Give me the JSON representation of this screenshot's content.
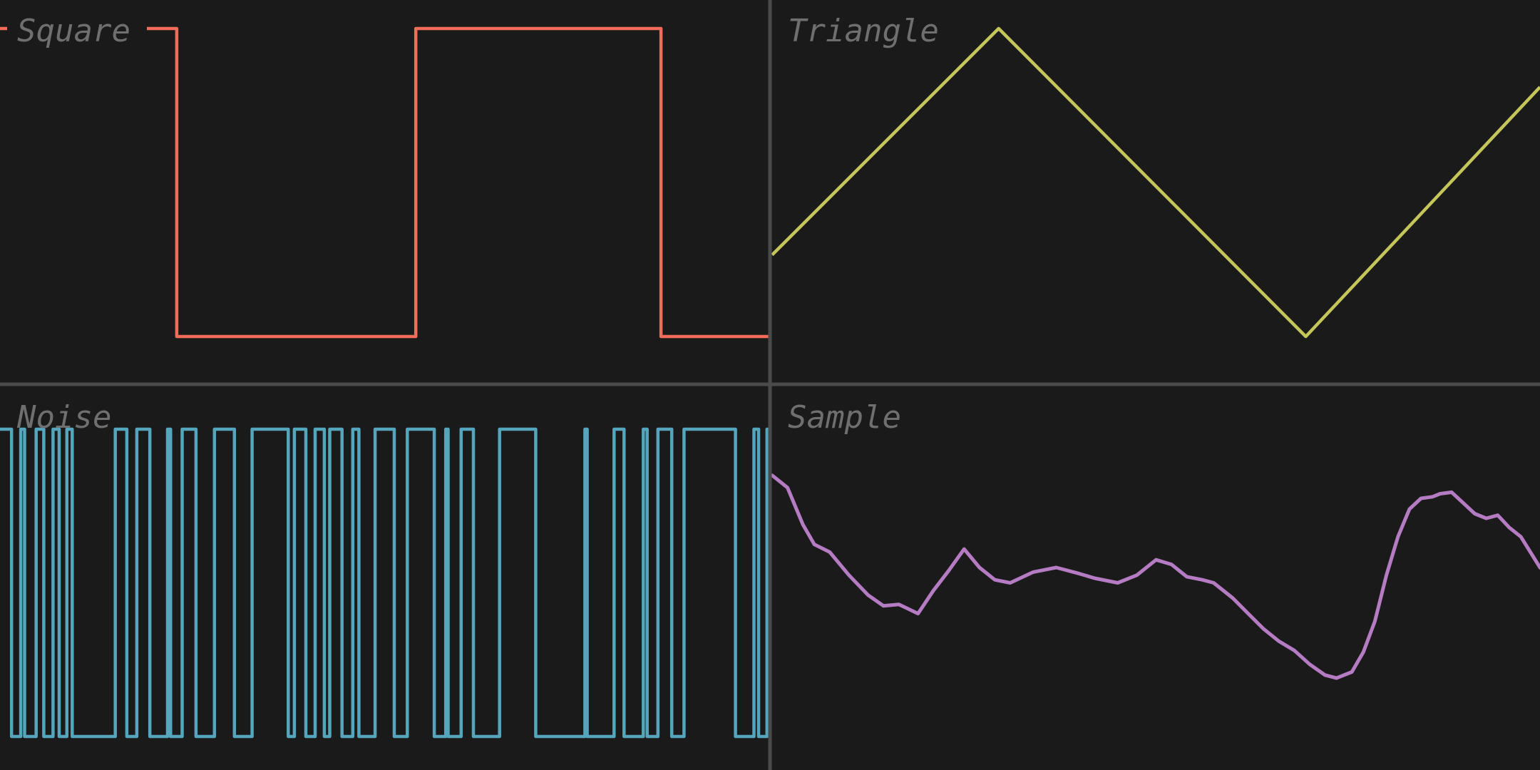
{
  "colors": {
    "background": "#1a1a1a",
    "divider": "#4a4a4a",
    "label": "#6f6f6f",
    "square": "#f26b5b",
    "triangle": "#c5c65a",
    "noise": "#55a6bd",
    "sample": "#b57cc4"
  },
  "chart_data": [
    {
      "type": "line",
      "title": "Square",
      "x_range": [
        0,
        1
      ],
      "ylim": [
        -1,
        1
      ],
      "points": [
        [
          0,
          1
        ],
        [
          0.23,
          1
        ],
        [
          0.23,
          -1
        ],
        [
          0.541,
          -1
        ],
        [
          0.541,
          1
        ],
        [
          0.86,
          1
        ],
        [
          0.86,
          -1
        ],
        [
          1,
          -1
        ]
      ]
    },
    {
      "type": "line",
      "title": "Triangle",
      "x_range": [
        0,
        1
      ],
      "ylim": [
        -1,
        1
      ],
      "points": [
        [
          0,
          -0.47
        ],
        [
          0.295,
          1
        ],
        [
          0.695,
          -1
        ],
        [
          1,
          0.62
        ]
      ]
    },
    {
      "type": "line",
      "title": "Noise",
      "x_range": [
        0,
        1
      ],
      "ylim": [
        -1,
        1
      ],
      "transitions": [
        0.015,
        0.027,
        0.032,
        0.047,
        0.057,
        0.069,
        0.077,
        0.087,
        0.094,
        0.15,
        0.165,
        0.178,
        0.195,
        0.218,
        0.222,
        0.237,
        0.255,
        0.279,
        0.305,
        0.328,
        0.375,
        0.383,
        0.398,
        0.41,
        0.422,
        0.429,
        0.445,
        0.459,
        0.467,
        0.488,
        0.513,
        0.53,
        0.565,
        0.58,
        0.583,
        0.6,
        0.616,
        0.65,
        0.697,
        0.761,
        0.764,
        0.799,
        0.812,
        0.837,
        0.842,
        0.856,
        0.874,
        0.89,
        0.957,
        0.981,
        0.987,
        0.998
      ]
    },
    {
      "type": "line",
      "title": "Sample",
      "x_range": [
        0,
        1
      ],
      "ylim": [
        -1,
        1
      ],
      "points": [
        [
          0,
          0.7
        ],
        [
          0.02,
          0.62
        ],
        [
          0.04,
          0.38
        ],
        [
          0.055,
          0.25
        ],
        [
          0.075,
          0.2
        ],
        [
          0.1,
          0.05
        ],
        [
          0.125,
          -0.08
        ],
        [
          0.145,
          -0.15
        ],
        [
          0.165,
          -0.14
        ],
        [
          0.19,
          -0.2
        ],
        [
          0.21,
          -0.05
        ],
        [
          0.23,
          0.08
        ],
        [
          0.25,
          0.22
        ],
        [
          0.27,
          0.1
        ],
        [
          0.29,
          0.02
        ],
        [
          0.31,
          0.0
        ],
        [
          0.34,
          0.07
        ],
        [
          0.37,
          0.1
        ],
        [
          0.4,
          0.06
        ],
        [
          0.42,
          0.03
        ],
        [
          0.45,
          0.0
        ],
        [
          0.475,
          0.05
        ],
        [
          0.5,
          0.15
        ],
        [
          0.52,
          0.12
        ],
        [
          0.54,
          0.04
        ],
        [
          0.56,
          0.02
        ],
        [
          0.575,
          0.0
        ],
        [
          0.6,
          -0.1
        ],
        [
          0.62,
          -0.2
        ],
        [
          0.64,
          -0.3
        ],
        [
          0.66,
          -0.38
        ],
        [
          0.68,
          -0.44
        ],
        [
          0.7,
          -0.53
        ],
        [
          0.72,
          -0.6
        ],
        [
          0.735,
          -0.62
        ],
        [
          0.755,
          -0.58
        ],
        [
          0.77,
          -0.45
        ],
        [
          0.785,
          -0.25
        ],
        [
          0.8,
          0.05
        ],
        [
          0.815,
          0.3
        ],
        [
          0.83,
          0.48
        ],
        [
          0.845,
          0.55
        ],
        [
          0.86,
          0.56
        ],
        [
          0.87,
          0.58
        ],
        [
          0.885,
          0.59
        ],
        [
          0.9,
          0.52
        ],
        [
          0.915,
          0.45
        ],
        [
          0.93,
          0.42
        ],
        [
          0.945,
          0.44
        ],
        [
          0.96,
          0.36
        ],
        [
          0.975,
          0.3
        ],
        [
          0.99,
          0.18
        ],
        [
          1,
          0.1
        ],
        [
          1.01,
          0.06
        ],
        [
          1.025,
          0.0
        ]
      ]
    }
  ]
}
